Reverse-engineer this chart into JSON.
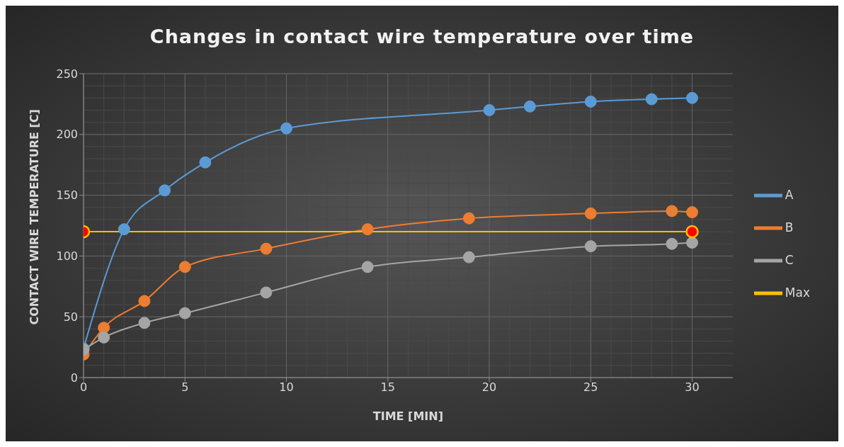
{
  "chart_data": {
    "type": "line",
    "title": "Changes in contact wire temperature over time",
    "xlabel": "TIME [MIN]",
    "ylabel": "CONTACT WIRE TEMPERATURE [C]",
    "xlim": [
      0,
      32
    ],
    "xticks": [
      0,
      5,
      10,
      15,
      20,
      25,
      30
    ],
    "ylim": [
      0,
      250
    ],
    "yticks": [
      0,
      50,
      100,
      150,
      200,
      250
    ],
    "grid": true,
    "legend": "right",
    "marker": "circle",
    "series": [
      {
        "name": "A",
        "color": "#5b9bd5",
        "x": [
          0,
          2,
          4,
          6,
          10,
          20,
          22,
          25,
          28,
          30
        ],
        "values": [
          24,
          122,
          154,
          177,
          205,
          220,
          223,
          227,
          229,
          230
        ]
      },
      {
        "name": "B",
        "color": "#ed7d31",
        "x": [
          0,
          1,
          3,
          5,
          9,
          14,
          19,
          25,
          29,
          30
        ],
        "values": [
          19,
          41,
          63,
          91,
          106,
          122,
          131,
          135,
          137,
          136
        ]
      },
      {
        "name": "C",
        "color": "#a5a5a5",
        "x": [
          0,
          1,
          3,
          5,
          9,
          14,
          19,
          25,
          29,
          30
        ],
        "values": [
          23,
          33,
          45,
          53,
          70,
          91,
          99,
          108,
          110,
          111
        ]
      },
      {
        "name": "Max",
        "color": "#ffc000",
        "x": [
          0,
          30
        ],
        "values": [
          120,
          120
        ]
      }
    ]
  }
}
